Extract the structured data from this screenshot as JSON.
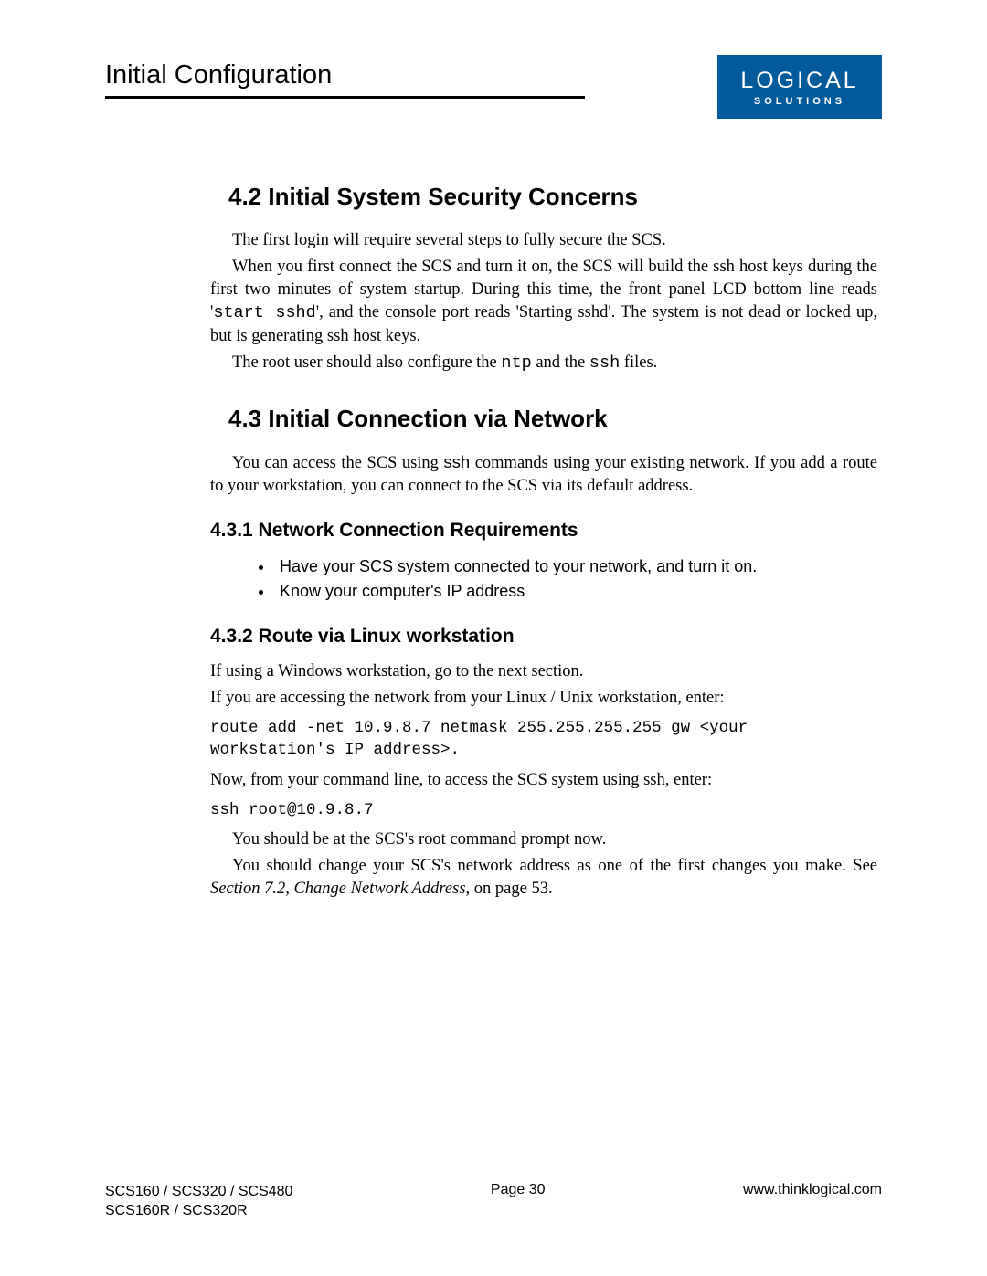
{
  "header": {
    "title": "Initial Configuration",
    "logo_main": "LOGICAL",
    "logo_sub": "SOLUTIONS"
  },
  "sections": {
    "s42": {
      "heading": "4.2  Initial System Security Concerns",
      "p1": "The first login will require several steps to fully secure the SCS.",
      "p2a": "When you first connect the SCS and turn it on, the SCS will build the ssh host keys during the first two minutes of system startup. During this time, the front panel LCD bottom line reads '",
      "p2code": "start sshd",
      "p2b": "', and the console port reads 'Starting sshd'. The system is not dead or locked up, but is generating ssh host keys.",
      "p3a": "The root user should also configure the ",
      "p3ntp": "ntp",
      "p3b": " and the ",
      "p3ssh": "ssh",
      "p3c": " files."
    },
    "s43": {
      "heading": "4.3  Initial Connection via Network",
      "p1a": "You can access the SCS using ",
      "p1ssh": "ssh",
      "p1b": " commands using your existing network. If you add a route to your workstation, you can connect to the SCS via its default address."
    },
    "s431": {
      "heading": "4.3.1  Network Connection Requirements",
      "bullet1": "Have your SCS system connected to your network, and turn it on.",
      "bullet2": "Know your computer's IP address"
    },
    "s432": {
      "heading": "4.3.2  Route via Linux workstation",
      "p1": "If using a Windows workstation, go to the next section.",
      "p2": "If you are accessing the network from your Linux / Unix workstation, enter:",
      "code1": "route add -net 10.9.8.7 netmask 255.255.255.255 gw <your workstation's IP address>.",
      "p3": "Now, from your command line, to access the SCS system using ssh, enter:",
      "code2": "ssh root@10.9.8.7",
      "p4": "You should be at the SCS's root command prompt now.",
      "p5a": "You should change your SCS's network address as one of the first changes you make. See ",
      "p5ref": "Section 7.2, Change Network Address,",
      "p5b": " on page 53."
    }
  },
  "footer": {
    "left1": "SCS160 / SCS320 / SCS480",
    "left2": "SCS160R / SCS320R",
    "center": "Page 30",
    "right": "www.thinklogical.com"
  },
  "colors": {
    "logo_bg": "#005a9c",
    "text": "#000000",
    "bg": "#ffffff"
  }
}
